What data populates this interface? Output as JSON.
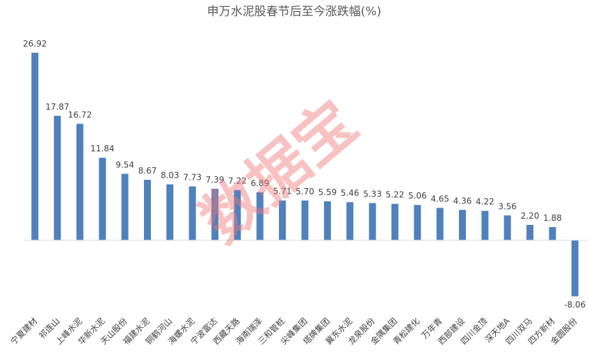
{
  "chart_data": {
    "type": "bar",
    "title": "申万水泥股春节后至今涨跌幅(%)",
    "xlabel": "",
    "ylabel": "",
    "ylim": [
      -9,
      28
    ],
    "grid": false,
    "legend": "none",
    "bar_color": "#4f81bd",
    "categories": [
      "宁夏建材",
      "祁连山",
      "上峰水泥",
      "华新水泥",
      "天山股份",
      "福建水泥",
      "铜鹤河山",
      "海螺水泥",
      "宁波富达",
      "西藏天路",
      "海南瑞泽",
      "三和管桩",
      "尖峰集团",
      "塔牌集团",
      "冀东水泥",
      "龙泉股份",
      "金隅集团",
      "青松建化",
      "万年青",
      "西部建设",
      "四川金顶",
      "深天地A",
      "四川双马",
      "四方新材",
      "金圆股份"
    ],
    "values": [
      26.92,
      17.87,
      16.72,
      11.84,
      9.54,
      8.67,
      8.03,
      7.73,
      7.39,
      7.22,
      6.89,
      5.71,
      5.7,
      5.59,
      5.46,
      5.33,
      5.22,
      5.06,
      4.65,
      4.36,
      4.22,
      3.56,
      2.2,
      1.88,
      -8.06
    ],
    "value_labels": [
      "26.92",
      "17.87",
      "16.72",
      "11.84",
      "9.54",
      "8.67",
      "8.03",
      "7.73",
      "7.39",
      "7.22",
      "6.89",
      "5.71",
      "5.70",
      "5.59",
      "5.46",
      "5.33",
      "5.22",
      "5.06",
      "4.65",
      "4.36",
      "4.22",
      "3.56",
      "2.20",
      "1.88",
      "-8.06"
    ]
  },
  "watermark": "数据宝",
  "colors": {
    "axis": "#d9d9d9",
    "watermark": "#f07a7a"
  }
}
